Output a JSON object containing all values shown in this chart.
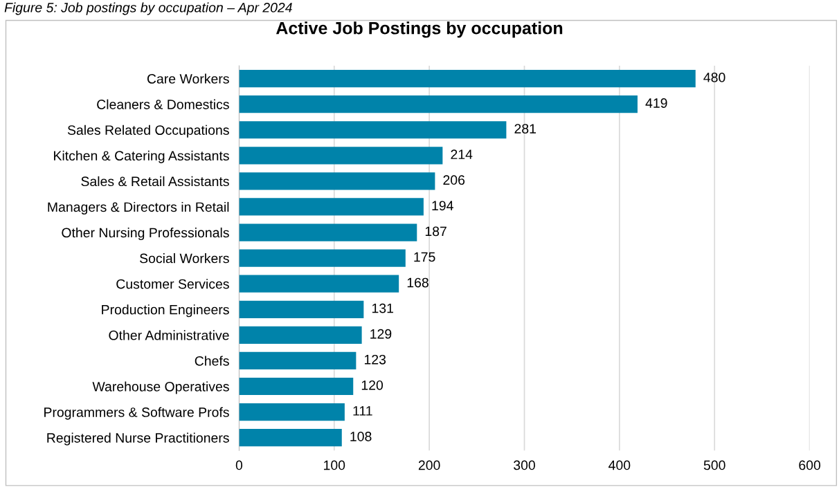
{
  "chart_data": {
    "type": "bar",
    "orientation": "horizontal",
    "title": "Active Job Postings by occupation",
    "annotations": [
      "Figure 5: Job postings by occupation – Apr 2024"
    ],
    "categories": [
      "Care Workers",
      "Cleaners & Domestics",
      "Sales Related Occupations",
      "Kitchen & Catering Assistants",
      "Sales & Retail Assistants",
      "Managers & Directors in Retail",
      "Other Nursing Professionals",
      "Social Workers",
      "Customer Services",
      "Production Engineers",
      "Other Administrative",
      "Chefs",
      "Warehouse Operatives",
      "Programmers & Software Profs",
      "Registered Nurse Practitioners"
    ],
    "values": [
      480,
      419,
      281,
      214,
      206,
      194,
      187,
      175,
      168,
      131,
      129,
      123,
      120,
      111,
      108
    ],
    "color": "#0083aa",
    "data_labels": true,
    "xlim": [
      0,
      600
    ],
    "xticks": [
      0,
      100,
      200,
      300,
      400,
      500,
      600
    ],
    "grid": "x",
    "legend": false
  }
}
